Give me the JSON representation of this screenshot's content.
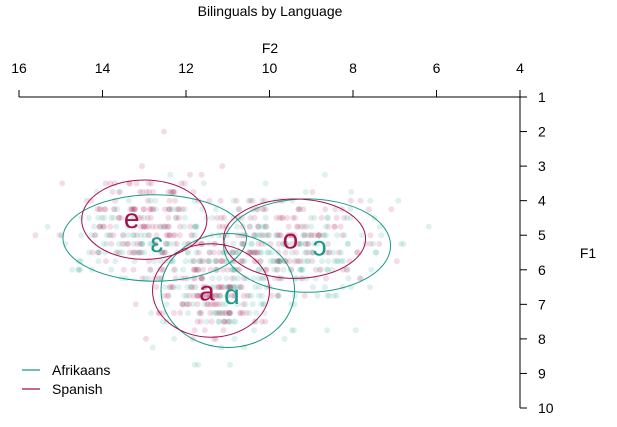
{
  "chart_data": {
    "type": "scatter",
    "title": "Bilinguals by Language",
    "xlabel": "F2",
    "ylabel": "F1",
    "x_axis": {
      "position": "top",
      "reversed": true,
      "range": [
        16,
        4
      ],
      "ticks": [
        16,
        14,
        12,
        10,
        8,
        6,
        4
      ]
    },
    "y_axis": {
      "position": "right",
      "reversed": true,
      "range": [
        1,
        10
      ],
      "ticks": [
        1,
        2,
        3,
        4,
        5,
        6,
        7,
        8,
        9,
        10
      ]
    },
    "grid": false,
    "legend_position": "bottom-left",
    "series": [
      {
        "name": "Afrikaans",
        "color": "#1a9988",
        "vowels": [
          {
            "label": "ɛ",
            "f2": 12.7,
            "f1": 5.2,
            "ellipse": {
              "cx": 12.75,
              "cy": 5.08,
              "rx": 2.2,
              "ry": 1.25
            }
          },
          {
            "label": "ɑ",
            "f2": 10.9,
            "f1": 6.7,
            "ellipse": {
              "cx": 11.0,
              "cy": 6.6,
              "rx": 1.6,
              "ry": 1.65
            }
          },
          {
            "label": "ɔ",
            "f2": 8.8,
            "f1": 5.3,
            "ellipse": {
              "cx": 9.1,
              "cy": 5.3,
              "rx": 2.0,
              "ry": 1.35
            }
          }
        ]
      },
      {
        "name": "Spanish",
        "color": "#a50f4f",
        "vowels": [
          {
            "label": "e",
            "f2": 13.3,
            "f1": 4.5,
            "ellipse": {
              "cx": 13.0,
              "cy": 4.55,
              "rx": 1.5,
              "ry": 1.15
            }
          },
          {
            "label": "a",
            "f2": 11.5,
            "f1": 6.6,
            "ellipse": {
              "cx": 11.4,
              "cy": 6.6,
              "rx": 1.4,
              "ry": 1.35
            }
          },
          {
            "label": "o",
            "f2": 9.5,
            "f1": 5.1,
            "ellipse": {
              "cx": 9.4,
              "cy": 5.1,
              "rx": 1.7,
              "ry": 1.15
            }
          }
        ]
      }
    ]
  }
}
